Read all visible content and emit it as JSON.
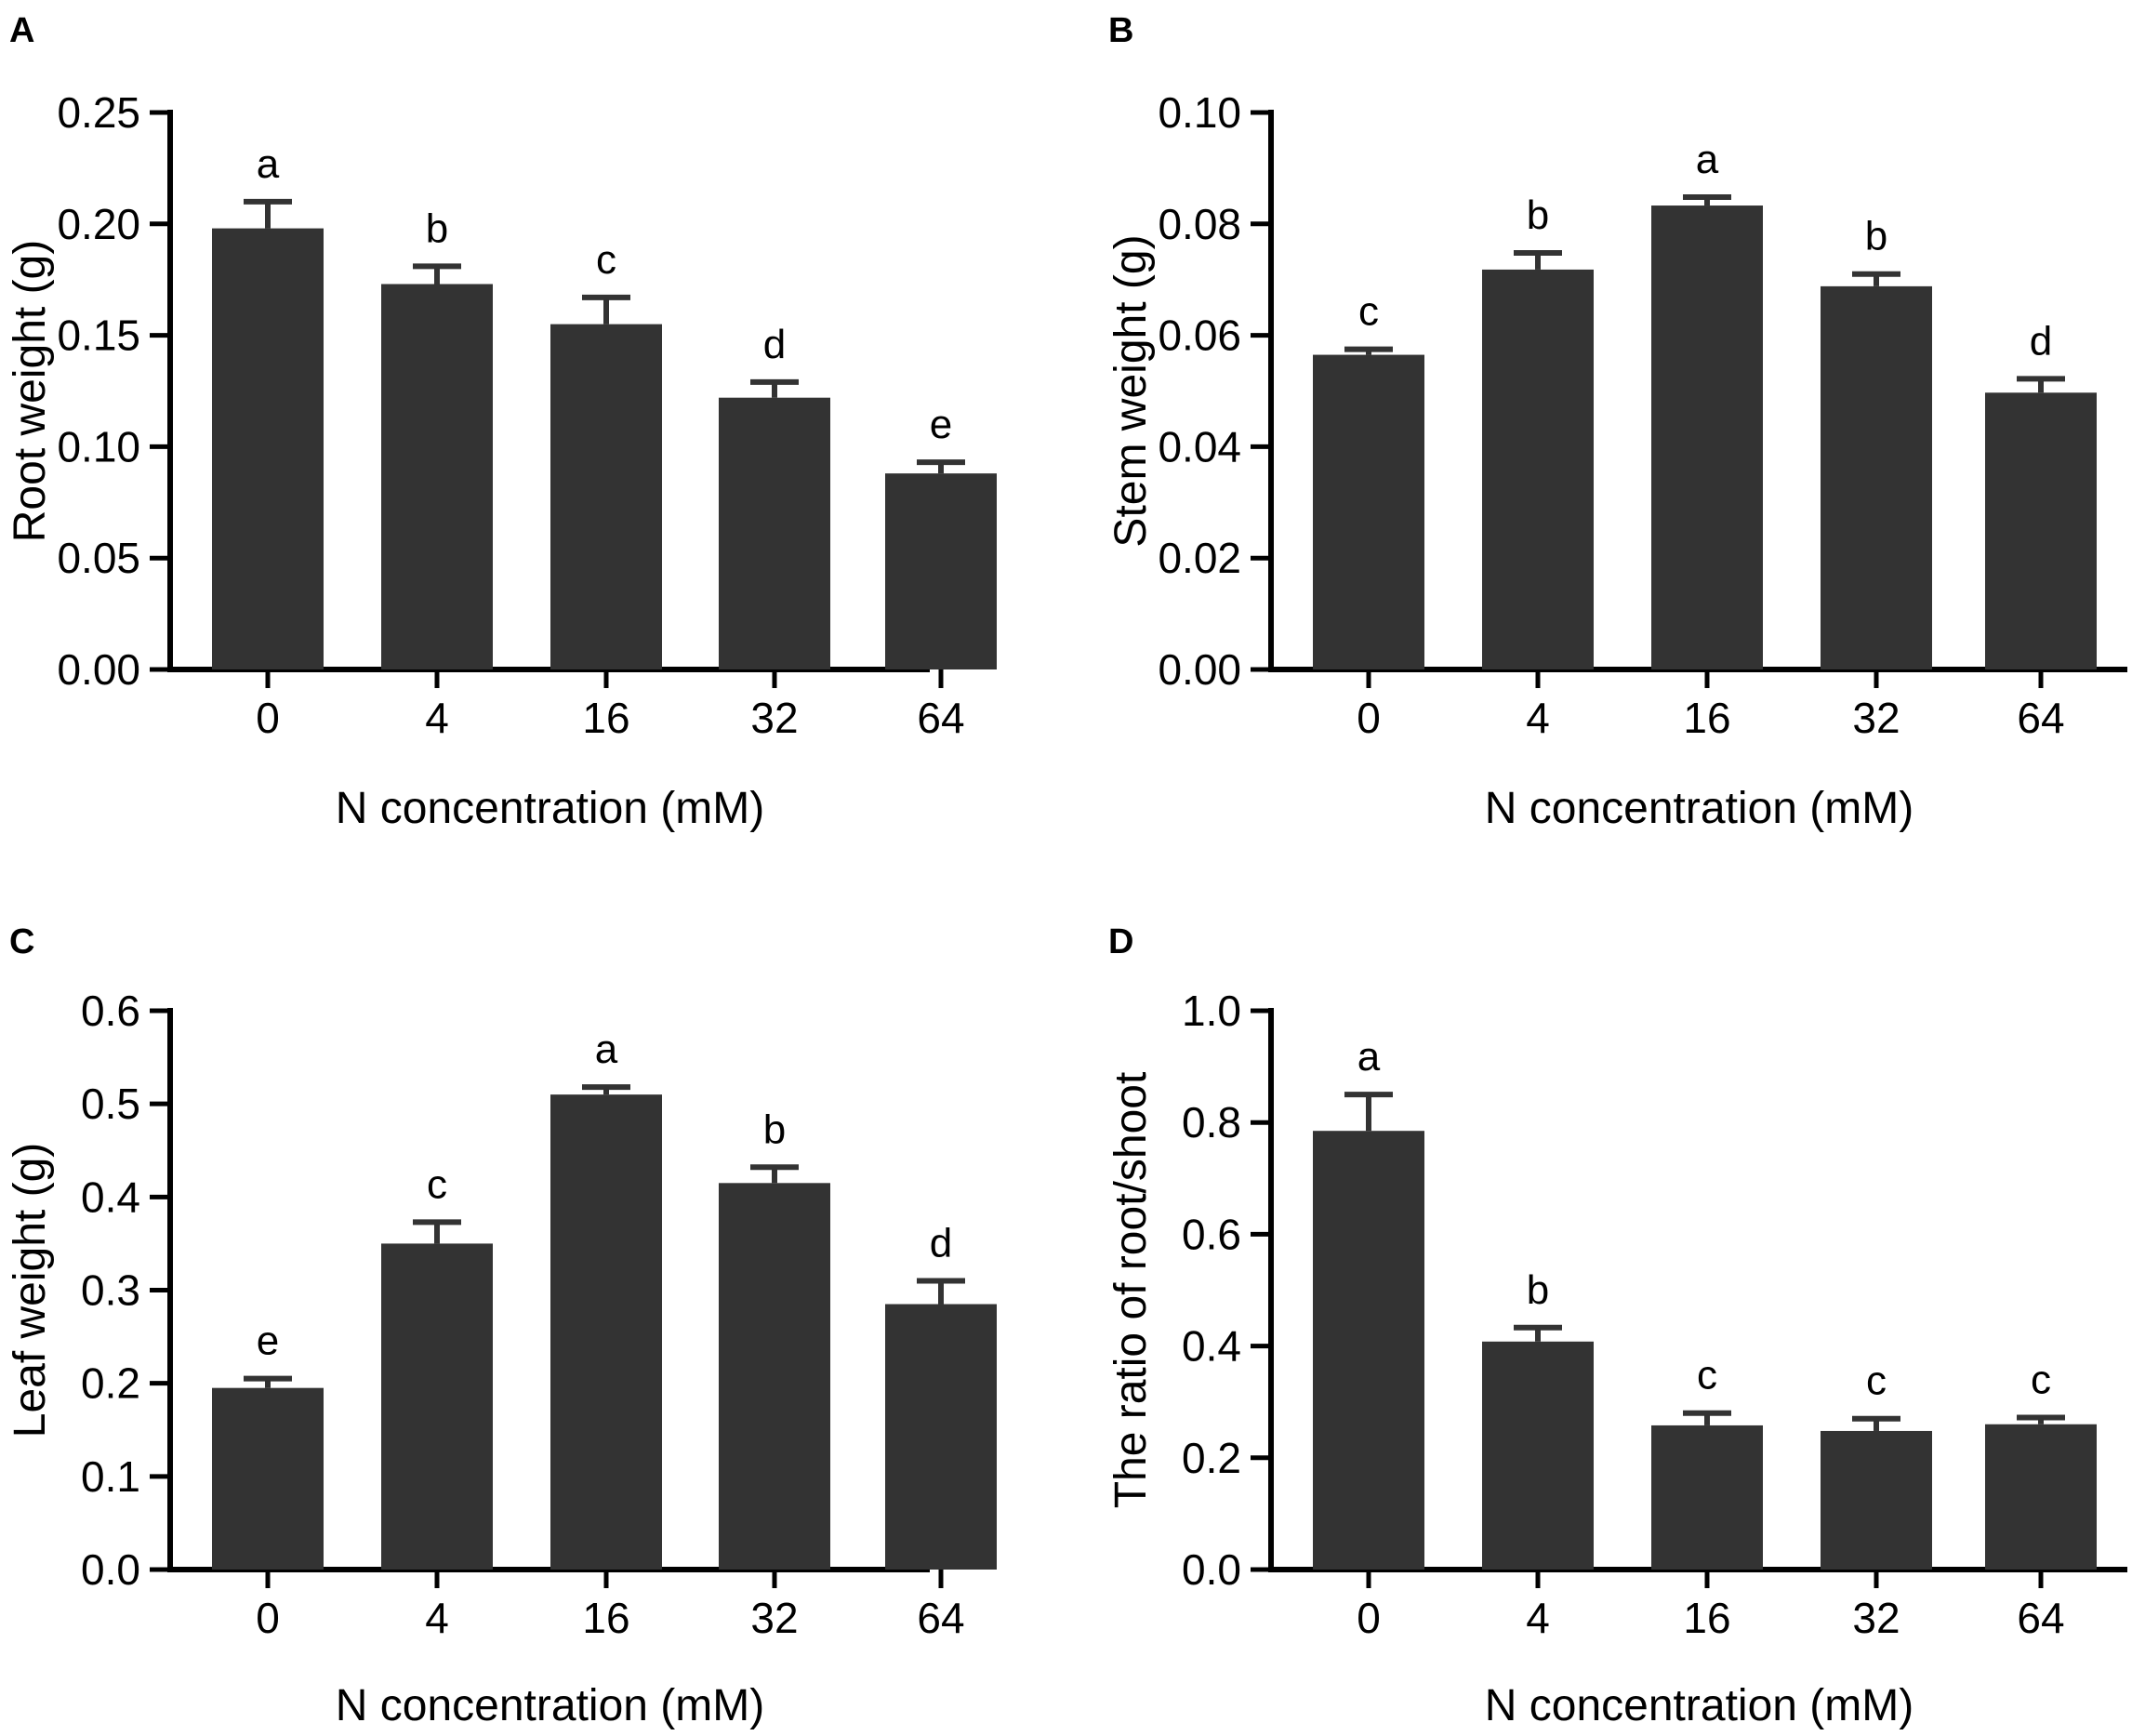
{
  "figure": {
    "colors": {
      "bar": "#333333",
      "axis": "#000000",
      "background": "#ffffff"
    }
  },
  "chart_data": [
    {
      "panel": "A",
      "type": "bar",
      "categories": [
        "0",
        "4",
        "16",
        "32",
        "64"
      ],
      "values": [
        0.198,
        0.173,
        0.155,
        0.122,
        0.088
      ],
      "errors": [
        0.012,
        0.008,
        0.012,
        0.007,
        0.005
      ],
      "significance": [
        "a",
        "b",
        "c",
        "d",
        "e"
      ],
      "yticks": [
        "0.00",
        "0.05",
        "0.10",
        "0.15",
        "0.20",
        "0.25"
      ],
      "ylim": [
        0,
        0.25
      ],
      "xlabel": "N concentration (mM)",
      "ylabel": "Root weight (g)"
    },
    {
      "panel": "B",
      "type": "bar",
      "categories": [
        "0",
        "4",
        "16",
        "32",
        "64"
      ],
      "values": [
        0.0565,
        0.0718,
        0.0833,
        0.0688,
        0.0497
      ],
      "errors": [
        0.001,
        0.003,
        0.0015,
        0.0022,
        0.0025
      ],
      "significance": [
        "c",
        "b",
        "a",
        "b",
        "d"
      ],
      "yticks": [
        "0.00",
        "0.02",
        "0.04",
        "0.06",
        "0.08",
        "0.10"
      ],
      "ylim": [
        0,
        0.1
      ],
      "xlabel": "N concentration (mM)",
      "ylabel": "Stem weight (g)"
    },
    {
      "panel": "C",
      "type": "bar",
      "categories": [
        "0",
        "4",
        "16",
        "32",
        "64"
      ],
      "values": [
        0.195,
        0.35,
        0.51,
        0.415,
        0.285
      ],
      "errors": [
        0.01,
        0.023,
        0.008,
        0.017,
        0.025
      ],
      "significance": [
        "e",
        "c",
        "a",
        "b",
        "d"
      ],
      "yticks": [
        "0.0",
        "0.1",
        "0.2",
        "0.3",
        "0.4",
        "0.5",
        "0.6"
      ],
      "ylim": [
        0,
        0.6
      ],
      "xlabel": "N concentration (mM)",
      "ylabel": "Leaf weight (g)"
    },
    {
      "panel": "D",
      "type": "bar",
      "categories": [
        "0",
        "4",
        "16",
        "32",
        "64"
      ],
      "values": [
        0.785,
        0.408,
        0.258,
        0.248,
        0.26
      ],
      "errors": [
        0.065,
        0.025,
        0.022,
        0.022,
        0.012
      ],
      "significance": [
        "a",
        "b",
        "c",
        "c",
        "c"
      ],
      "yticks": [
        "0.0",
        "0.2",
        "0.4",
        "0.6",
        "0.8",
        "1.0"
      ],
      "ylim": [
        0,
        1.0
      ],
      "xlabel": "N concentration (mM)",
      "ylabel": "The ratio of root/shoot"
    }
  ]
}
